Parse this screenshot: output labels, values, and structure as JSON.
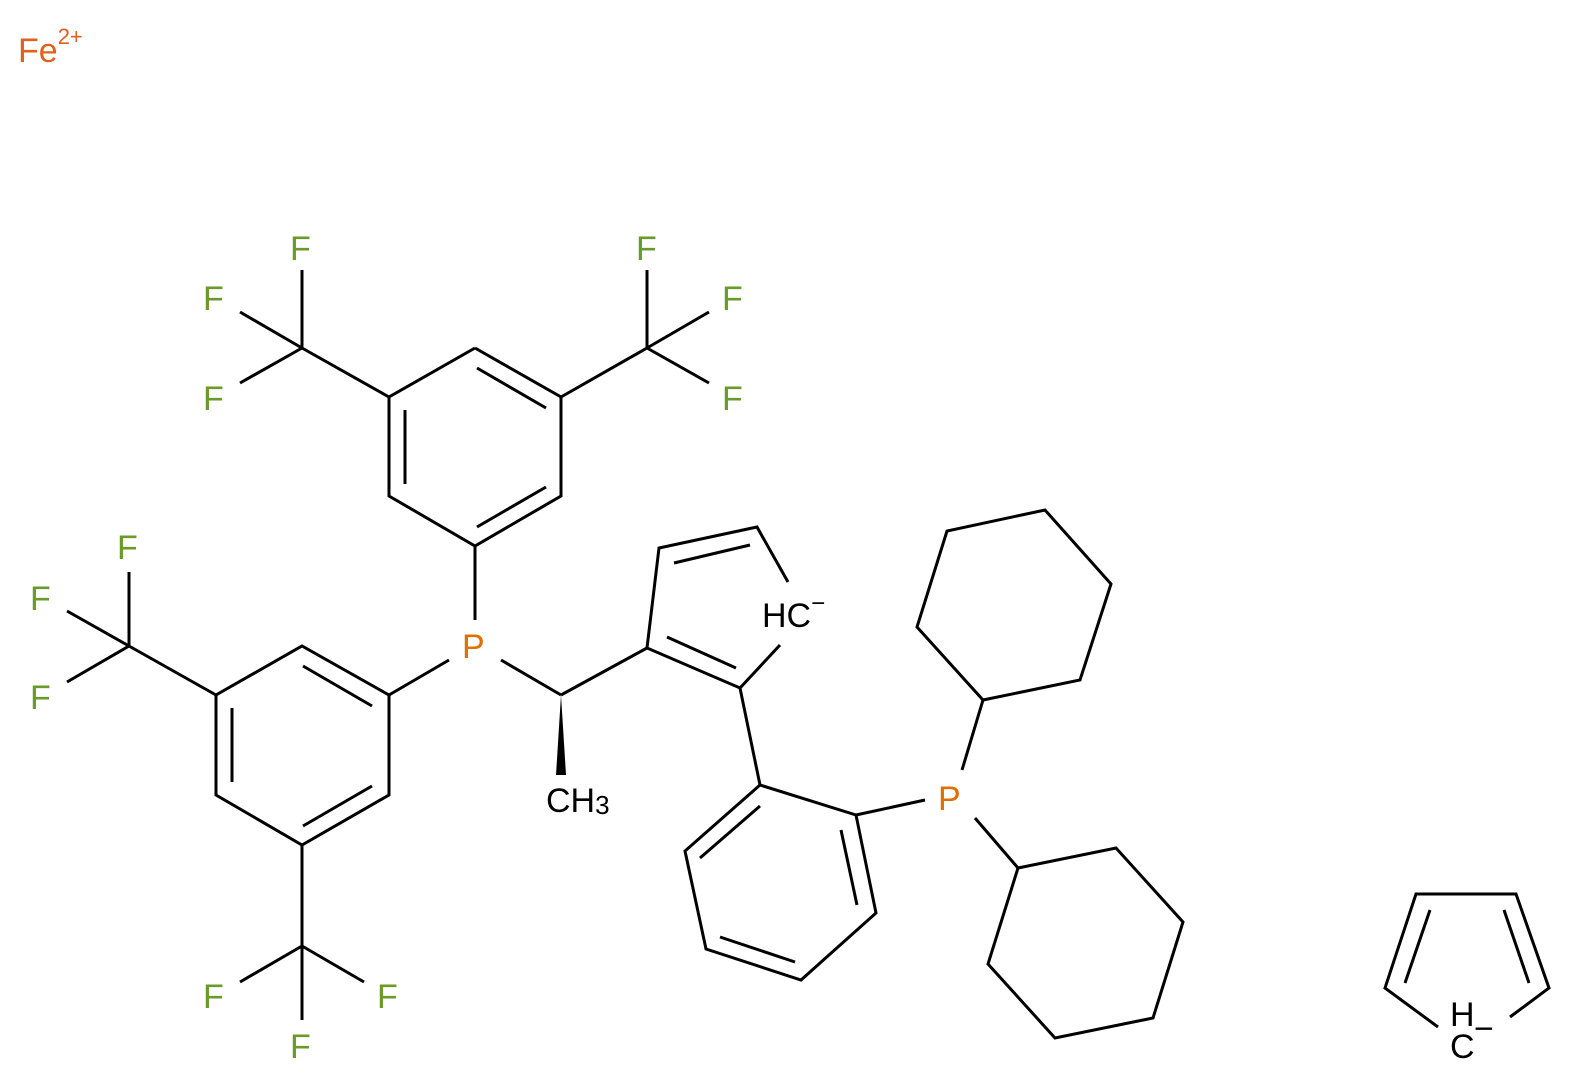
{
  "molecule": {
    "metal": {
      "symbol": "Fe",
      "charge": "2+"
    },
    "fluorine": "F",
    "phosphorus": "P",
    "methyl": {
      "base": "CH",
      "subscript": "3"
    },
    "carbanion_label": {
      "text": "HC",
      "charge": "−"
    },
    "cp_anion": {
      "h": "H",
      "c": "C",
      "charge": "−"
    }
  },
  "colors": {
    "fluorine": "#6a9a2a",
    "phosphorus": "#e07000",
    "iron": "#e06020",
    "bond": "#000000"
  }
}
